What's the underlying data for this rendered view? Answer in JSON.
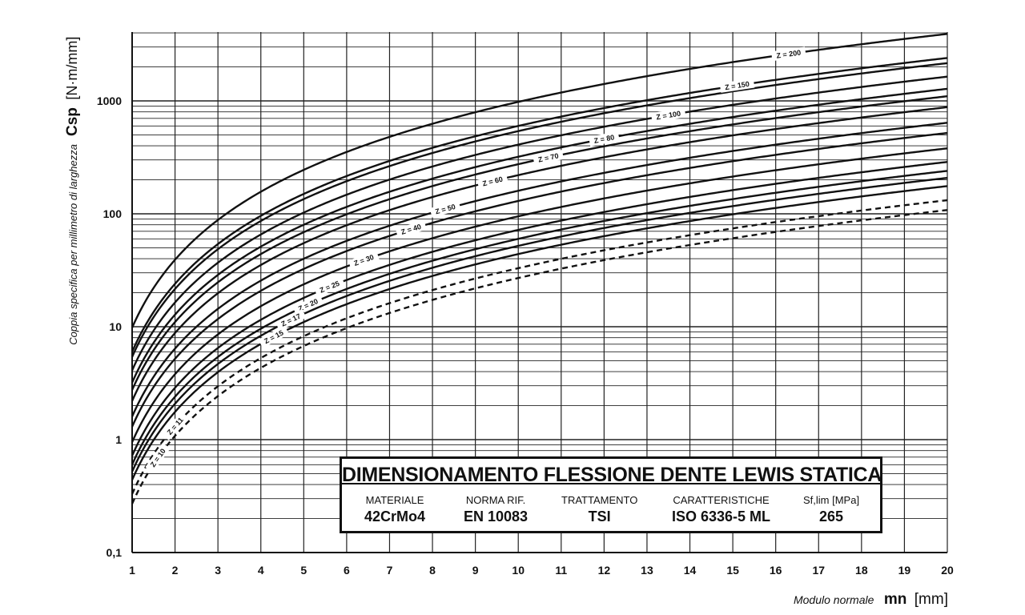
{
  "chart_data": {
    "type": "line",
    "xlabel_small": "Modulo normale",
    "xlabel_symbol": "mn",
    "xlabel_unit": "[mm]",
    "ylabel_small": "Coppia specifica per millimetro di larghezza",
    "ylabel_symbol": "Csp",
    "ylabel_unit": "[N·m/mm]",
    "xlim": [
      1,
      20
    ],
    "ylim": [
      0.1,
      5000
    ],
    "yscale": "log",
    "grid": true,
    "x_ticks": [
      1,
      2,
      3,
      4,
      5,
      6,
      7,
      8,
      9,
      10,
      11,
      12,
      13,
      14,
      15,
      16,
      17,
      18,
      19,
      20
    ],
    "y_tick_values": [
      0.1,
      1,
      10,
      100,
      1000
    ],
    "y_tick_labels": [
      "0,1",
      "1",
      "10",
      "100",
      "1000"
    ],
    "curve_model": "Csp = a * mn^2",
    "series": [
      {
        "name": "Z = 200",
        "a": 9.8,
        "style": "solid",
        "labeled": true
      },
      {
        "name": "Z = 150",
        "a": 6.0,
        "style": "solid",
        "labeled": true
      },
      {
        "name": "",
        "a": 5.4,
        "style": "solid",
        "labeled": false
      },
      {
        "name": "Z = 100",
        "a": 4.1,
        "style": "solid",
        "labeled": true
      },
      {
        "name": "Z = 80",
        "a": 3.2,
        "style": "solid",
        "labeled": true
      },
      {
        "name": "Z = 70",
        "a": 2.75,
        "style": "solid",
        "labeled": true
      },
      {
        "name": "Z = 60",
        "a": 2.2,
        "style": "solid",
        "labeled": true
      },
      {
        "name": "Z = 50",
        "a": 1.6,
        "style": "solid",
        "labeled": true
      },
      {
        "name": "Z = 40",
        "a": 1.3,
        "style": "solid",
        "labeled": true
      },
      {
        "name": "Z = 30",
        "a": 0.95,
        "style": "solid",
        "labeled": true
      },
      {
        "name": "Z = 25",
        "a": 0.72,
        "style": "solid",
        "labeled": true
      },
      {
        "name": "Z = 20",
        "a": 0.6,
        "style": "solid",
        "labeled": true
      },
      {
        "name": "Z = 17",
        "a": 0.52,
        "style": "solid",
        "labeled": true
      },
      {
        "name": "Z = 15",
        "a": 0.44,
        "style": "solid",
        "labeled": true
      },
      {
        "name": "Z = 11",
        "a": 0.33,
        "style": "dashed",
        "labeled": true
      },
      {
        "name": "Z = 10",
        "a": 0.27,
        "style": "dashed",
        "labeled": true
      }
    ],
    "label_positions_x": {
      "Z = 200": 16.3,
      "Z = 150": 15.1,
      "Z = 100": 13.5,
      "Z = 80": 12.0,
      "Z = 70": 10.7,
      "Z = 60": 9.4,
      "Z = 50": 8.3,
      "Z = 40": 7.5,
      "Z = 30": 6.4,
      "Z = 25": 5.6,
      "Z = 20": 5.1,
      "Z = 17": 4.7,
      "Z = 15": 4.3,
      "Z = 11": 2.0,
      "Z = 10": 1.6
    }
  },
  "info_box": {
    "title": "DIMENSIONAMENTO FLESSIONE DENTE LEWIS STATICA",
    "columns": [
      {
        "header": "MATERIALE",
        "value": "42CrMo4"
      },
      {
        "header": "NORMA RIF.",
        "value": "EN 10083"
      },
      {
        "header": "TRATTAMENTO",
        "value": "TSI"
      },
      {
        "header": "CARATTERISTICHE",
        "value": "ISO 6336-5 ML"
      },
      {
        "header": "Sf,lim [MPa]",
        "value": "265"
      }
    ]
  }
}
